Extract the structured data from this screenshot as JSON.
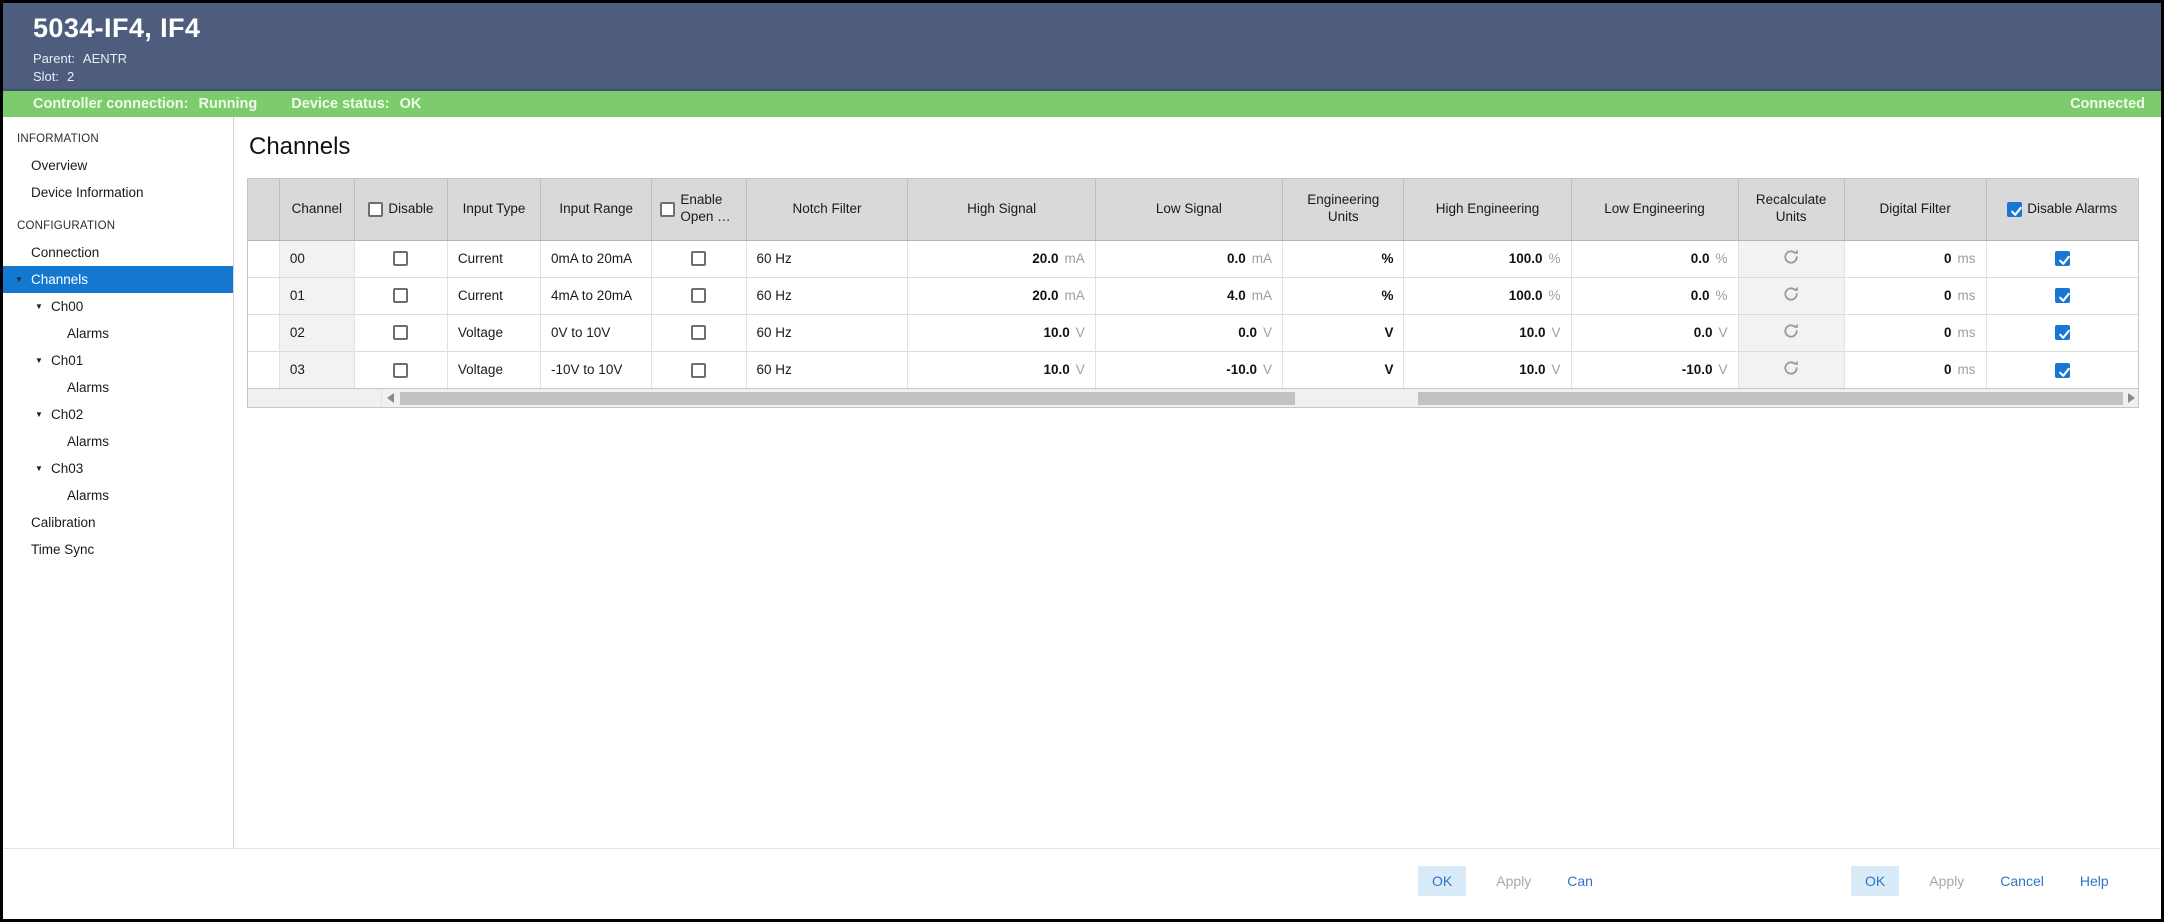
{
  "window": {
    "title": "5034-IF4, IF4",
    "parent_label": "Parent:",
    "parent_value": "AENTR",
    "slot_label": "Slot:",
    "slot_value": "2"
  },
  "status_bar": {
    "controller_label": "Controller connection:",
    "controller_value": "Running",
    "device_label": "Device status:",
    "device_value": "OK",
    "connected_label": "Connected"
  },
  "colors": {
    "titlebar_bg": "#4e5d7e",
    "statusbar_bg": "#7ccc6d",
    "selected_item_bg": "#1478d1",
    "checkbox_blue": "#1976d2",
    "link_blue": "#2e75c4",
    "table_header_bg": "#d9d9d9"
  },
  "sidebar": {
    "items": [
      {
        "label": "INFORMATION",
        "type": "section"
      },
      {
        "label": "Overview",
        "type": "item",
        "indent": 1
      },
      {
        "label": "Device Information",
        "type": "item",
        "indent": 1
      },
      {
        "label": "CONFIGURATION",
        "type": "section"
      },
      {
        "label": "Connection",
        "type": "item",
        "indent": 1
      },
      {
        "label": "Channels",
        "type": "item",
        "indent": 1,
        "caret": true,
        "selected": true
      },
      {
        "label": "Ch00",
        "type": "item",
        "indent": 2,
        "caret": true
      },
      {
        "label": "Alarms",
        "type": "item",
        "indent": 3
      },
      {
        "label": "Ch01",
        "type": "item",
        "indent": 2,
        "caret": true
      },
      {
        "label": "Alarms",
        "type": "item",
        "indent": 3
      },
      {
        "label": "Ch02",
        "type": "item",
        "indent": 2,
        "caret": true
      },
      {
        "label": "Alarms",
        "type": "item",
        "indent": 3
      },
      {
        "label": "Ch03",
        "type": "item",
        "indent": 2,
        "caret": true
      },
      {
        "label": "Alarms",
        "type": "item",
        "indent": 3
      },
      {
        "label": "Calibration",
        "type": "item",
        "indent": 1
      },
      {
        "label": "Time Sync",
        "type": "item",
        "indent": 1
      }
    ]
  },
  "main": {
    "title": "Channels",
    "table": {
      "columns": [
        {
          "key": "rowsel",
          "label": ""
        },
        {
          "key": "channel",
          "label": "Channel"
        },
        {
          "key": "disable",
          "label": "Disable",
          "header_checkbox": "unchecked"
        },
        {
          "key": "input_type",
          "label": "Input Type"
        },
        {
          "key": "input_range",
          "label": "Input Range"
        },
        {
          "key": "enable_open",
          "label": "Enable Open …",
          "header_checkbox": "unchecked"
        },
        {
          "key": "notch_filter",
          "label": "Notch Filter"
        },
        {
          "key": "high_signal",
          "label": "High Signal"
        },
        {
          "key": "low_signal",
          "label": "Low Signal"
        },
        {
          "key": "eng_units",
          "label": "Engineering Units"
        },
        {
          "key": "high_eng",
          "label": "High Engineering"
        },
        {
          "key": "low_eng",
          "label": "Low Engineering"
        },
        {
          "key": "recalc",
          "label": "Recalculate Units"
        },
        {
          "key": "digital_filter",
          "label": "Digital Filter"
        },
        {
          "key": "disable_alarms",
          "label": "Disable Alarms",
          "header_checkbox": "checked"
        }
      ],
      "rows": [
        {
          "channel": "00",
          "disable": false,
          "input_type": "Current",
          "input_range": "0mA to 20mA",
          "enable_open": false,
          "notch_filter": "60 Hz",
          "high_signal": {
            "value": "20.0",
            "unit": "mA"
          },
          "low_signal": {
            "value": "0.0",
            "unit": "mA"
          },
          "eng_units": "%",
          "high_eng": {
            "value": "100.0",
            "unit": "%"
          },
          "low_eng": {
            "value": "0.0",
            "unit": "%"
          },
          "recalc_icon": "recalculate-icon",
          "digital_filter": {
            "value": "0",
            "unit": "ms"
          },
          "disable_alarms": true
        },
        {
          "channel": "01",
          "disable": false,
          "input_type": "Current",
          "input_range": "4mA to 20mA",
          "enable_open": false,
          "notch_filter": "60 Hz",
          "high_signal": {
            "value": "20.0",
            "unit": "mA"
          },
          "low_signal": {
            "value": "4.0",
            "unit": "mA"
          },
          "eng_units": "%",
          "high_eng": {
            "value": "100.0",
            "unit": "%"
          },
          "low_eng": {
            "value": "0.0",
            "unit": "%"
          },
          "recalc_icon": "recalculate-icon",
          "digital_filter": {
            "value": "0",
            "unit": "ms"
          },
          "disable_alarms": true
        },
        {
          "channel": "02",
          "disable": false,
          "input_type": "Voltage",
          "input_range": "0V to 10V",
          "enable_open": false,
          "notch_filter": "60 Hz",
          "high_signal": {
            "value": "10.0",
            "unit": "V"
          },
          "low_signal": {
            "value": "0.0",
            "unit": "V"
          },
          "eng_units": "V",
          "high_eng": {
            "value": "10.0",
            "unit": "V"
          },
          "low_eng": {
            "value": "0.0",
            "unit": "V"
          },
          "recalc_icon": "recalculate-icon",
          "digital_filter": {
            "value": "0",
            "unit": "ms"
          },
          "disable_alarms": true
        },
        {
          "channel": "03",
          "disable": false,
          "input_type": "Voltage",
          "input_range": "-10V to 10V",
          "enable_open": false,
          "notch_filter": "60 Hz",
          "high_signal": {
            "value": "10.0",
            "unit": "V"
          },
          "low_signal": {
            "value": "-10.0",
            "unit": "V"
          },
          "eng_units": "V",
          "high_eng": {
            "value": "10.0",
            "unit": "V"
          },
          "low_eng": {
            "value": "-10.0",
            "unit": "V"
          },
          "recalc_icon": "recalculate-icon",
          "digital_filter": {
            "value": "0",
            "unit": "ms"
          },
          "disable_alarms": true
        }
      ]
    }
  },
  "footer": {
    "left_buttons": [
      {
        "label": "OK",
        "style": "primary"
      },
      {
        "label": "Apply",
        "style": "disabled"
      },
      {
        "label": "Can",
        "style": "link"
      }
    ],
    "right_buttons": [
      {
        "label": "OK",
        "style": "primary"
      },
      {
        "label": "Apply",
        "style": "disabled"
      },
      {
        "label": "Cancel",
        "style": "link"
      },
      {
        "label": "Help",
        "style": "link"
      }
    ]
  }
}
